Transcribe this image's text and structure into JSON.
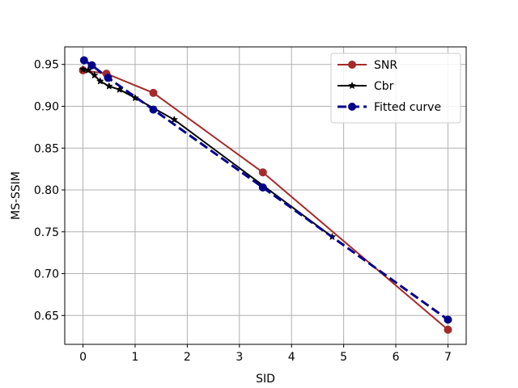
{
  "chart_data": {
    "type": "line",
    "xlabel": "SID",
    "ylabel": "MS-SSIM",
    "xlim": [
      -0.35,
      7.35
    ],
    "ylim": [
      0.6155,
      0.971
    ],
    "x_ticks": [
      0,
      1,
      2,
      3,
      4,
      5,
      6,
      7
    ],
    "y_ticks": [
      0.65,
      0.7,
      0.75,
      0.8,
      0.85,
      0.9,
      0.95
    ],
    "x_tick_labels": [
      "0",
      "1",
      "2",
      "3",
      "4",
      "5",
      "6",
      "7"
    ],
    "y_tick_labels": [
      "0.65",
      "0.70",
      "0.75",
      "0.80",
      "0.85",
      "0.90",
      "0.95"
    ],
    "grid": true,
    "legend_position": "top-right",
    "series": [
      {
        "name": "SNR",
        "color": "#a52a2a",
        "marker": "circle",
        "dash": "solid",
        "points": [
          [
            0.0,
            0.943
          ],
          [
            0.45,
            0.939
          ],
          [
            1.35,
            0.916
          ],
          [
            3.45,
            0.821
          ],
          [
            7.0,
            0.633
          ]
        ]
      },
      {
        "name": "Cbr",
        "color": "#000000",
        "marker": "star",
        "dash": "solid",
        "points": [
          [
            0.0,
            0.944
          ],
          [
            0.1,
            0.943
          ],
          [
            0.22,
            0.937
          ],
          [
            0.33,
            0.93
          ],
          [
            0.5,
            0.924
          ],
          [
            0.7,
            0.92
          ],
          [
            1.0,
            0.91
          ],
          [
            1.75,
            0.884
          ],
          [
            4.78,
            0.744
          ]
        ]
      },
      {
        "name": "Fitted curve",
        "color": "#00008b",
        "marker": "circle",
        "dash": "dashed",
        "points": [
          [
            0.02,
            0.955
          ],
          [
            0.17,
            0.949
          ],
          [
            0.48,
            0.934
          ],
          [
            1.35,
            0.896
          ],
          [
            3.45,
            0.803
          ],
          [
            7.0,
            0.645
          ]
        ]
      }
    ]
  }
}
